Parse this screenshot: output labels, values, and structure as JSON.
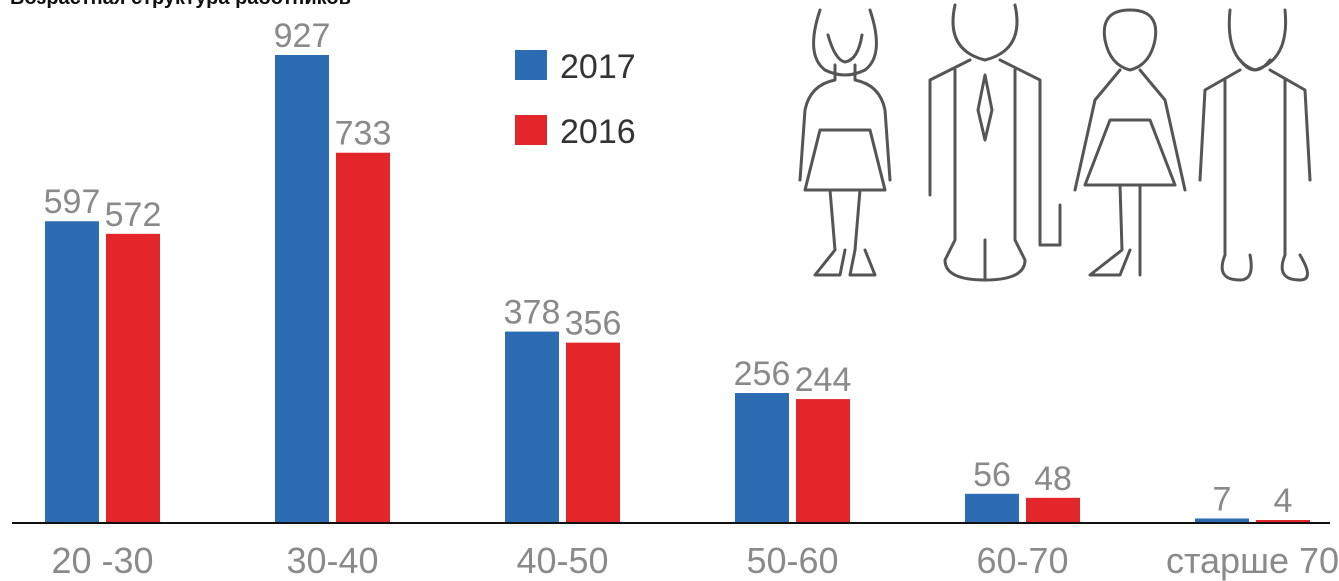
{
  "chart_data": {
    "type": "bar",
    "title": "Возрастная структура работников",
    "categories": [
      "20 -30",
      "30-40",
      "40-50",
      "50-60",
      "60-70",
      "старше 70"
    ],
    "series": [
      {
        "name": "2017",
        "color": "#2b6cb3",
        "values": [
          597,
          927,
          378,
          256,
          56,
          7
        ]
      },
      {
        "name": "2016",
        "color": "#e3262a",
        "values": [
          572,
          733,
          356,
          244,
          48,
          4
        ]
      }
    ]
  }
}
